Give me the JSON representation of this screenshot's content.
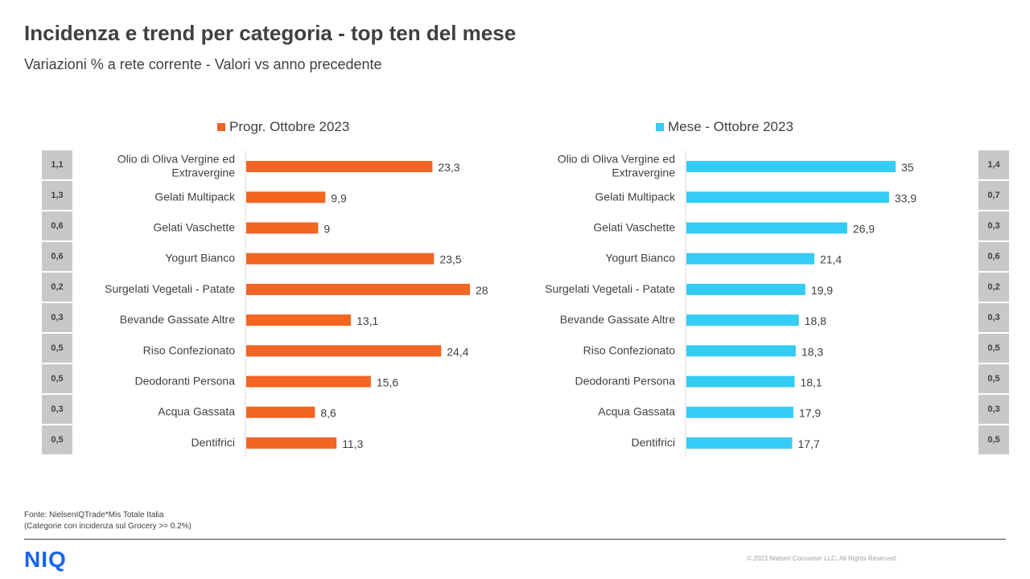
{
  "page": {
    "title": "Incidenza e trend per categoria - top ten del mese",
    "subtitle": "Variazioni  % a rete corrente - Valori vs anno precedente",
    "source_line1": "Fonte: NielsenIQTrade*Mis Totale Italia",
    "source_line2": "(Categorie con incidenza sul Grocery >= 0.2%)",
    "logo": "NIQ",
    "copyright": "© 2023 Nielsen Consumer LLC. All Rights Reserved."
  },
  "chart_data": [
    {
      "type": "bar",
      "orientation": "horizontal",
      "categories": [
        "Olio di Oliva Vergine ed Extravergine",
        "Gelati Multipack",
        "Gelati Vaschette",
        "Yogurt Bianco",
        "Surgelati Vegetali - Patate",
        "Bevande Gassate Altre",
        "Riso Confezionato",
        "Deodoranti Persona",
        "Acqua Gassata",
        "Dentifrici"
      ],
      "series": [
        {
          "name": "Progr. Ottobre 2023",
          "color": "#f26522",
          "values": [
            23.3,
            9.9,
            9,
            23.5,
            28,
            13.1,
            24.4,
            15.6,
            8.6,
            11.3
          ],
          "labels": [
            "23,3",
            "9,9",
            "9",
            "23,5",
            "28",
            "13,1",
            "24,4",
            "15,6",
            "8,6",
            "11,3"
          ]
        }
      ],
      "incidence": [
        "1,1",
        "1,3",
        "0,6",
        "0,6",
        "0,2",
        "0,3",
        "0,5",
        "0,5",
        "0,3",
        "0,5"
      ]
    },
    {
      "type": "bar",
      "orientation": "horizontal",
      "categories": [
        "Olio di Oliva Vergine ed Extravergine",
        "Gelati Multipack",
        "Gelati Vaschette",
        "Yogurt Bianco",
        "Surgelati Vegetali - Patate",
        "Bevande Gassate Altre",
        "Riso Confezionato",
        "Deodoranti Persona",
        "Acqua Gassata",
        "Dentifrici"
      ],
      "series": [
        {
          "name": "Mese - Ottobre 2023",
          "color": "#33ccf5",
          "values": [
            35,
            33.9,
            26.9,
            21.4,
            19.9,
            18.8,
            18.3,
            18.1,
            17.9,
            17.7
          ],
          "labels": [
            "35",
            "33,9",
            "26,9",
            "21,4",
            "19,9",
            "18,8",
            "18,3",
            "18,1",
            "17,9",
            "17,7"
          ]
        }
      ],
      "incidence": [
        "1,4",
        "0,7",
        "0,3",
        "0,6",
        "0,2",
        "0,3",
        "0,5",
        "0,5",
        "0,3",
        "0,5"
      ]
    }
  ]
}
